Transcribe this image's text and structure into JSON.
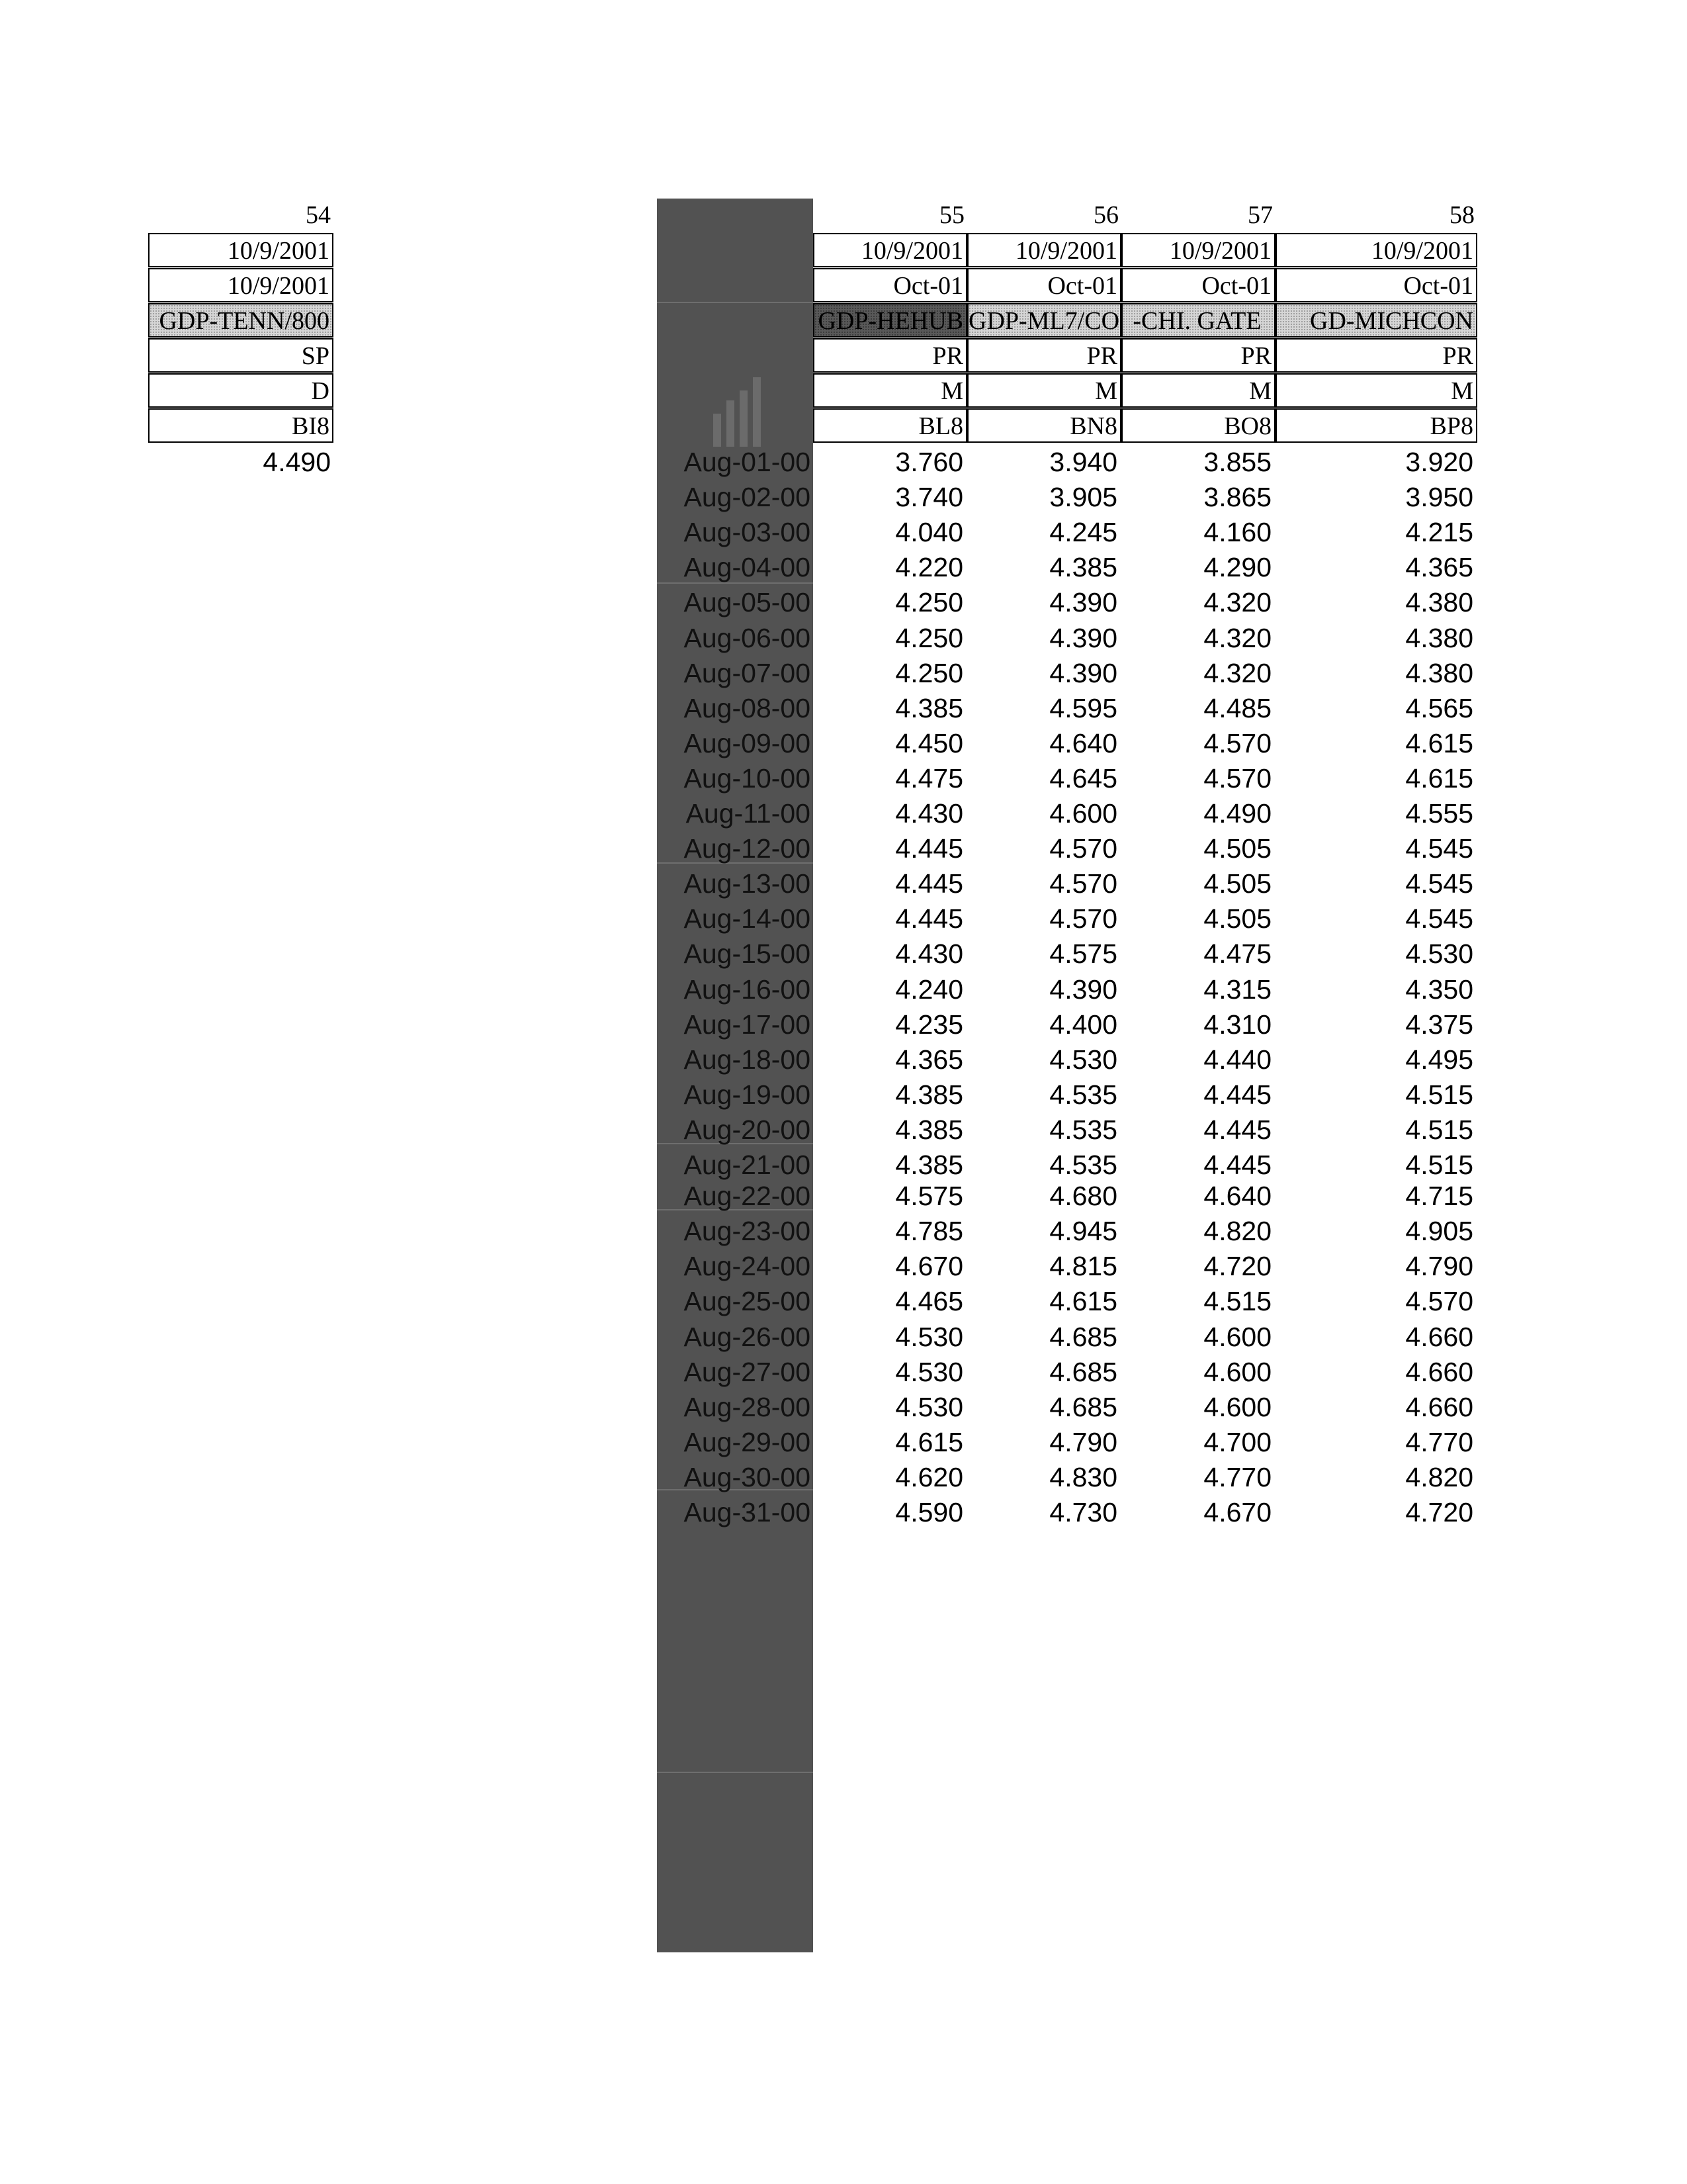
{
  "left_block": {
    "column_number": "54",
    "row_date1": "10/9/2001",
    "row_date2": "10/9/2001",
    "row_name": "GDP-TENN/800",
    "row_code1": "SP",
    "row_code2": "D",
    "row_cell": "BI8",
    "value": "4.490"
  },
  "columns": [
    {
      "number": "55",
      "date": "10/9/2001",
      "month": "Oct-01",
      "name": "GDP-HEHUB",
      "code1": "PR",
      "code2": "M",
      "cell": "BL8"
    },
    {
      "number": "56",
      "date": "10/9/2001",
      "month": "Oct-01",
      "name": "GDP-ML7/CO",
      "code1": "PR",
      "code2": "M",
      "cell": "BN8"
    },
    {
      "number": "57",
      "date": "10/9/2001",
      "month": "Oct-01",
      "name": "-CHI. GATE",
      "code1": "PR",
      "code2": "M",
      "cell": "BO8"
    },
    {
      "number": "58",
      "date": "10/9/2001",
      "month": "Oct-01",
      "name": "GD-MICHCON",
      "code1": "PR",
      "code2": "M",
      "cell": "BP8"
    }
  ],
  "rows": [
    {
      "date": "Aug-01-00",
      "values": [
        "3.760",
        "3.940",
        "3.855",
        "3.920"
      ]
    },
    {
      "date": "Aug-02-00",
      "values": [
        "3.740",
        "3.905",
        "3.865",
        "3.950"
      ]
    },
    {
      "date": "Aug-03-00",
      "values": [
        "4.040",
        "4.245",
        "4.160",
        "4.215"
      ]
    },
    {
      "date": "Aug-04-00",
      "values": [
        "4.220",
        "4.385",
        "4.290",
        "4.365"
      ]
    },
    {
      "date": "Aug-05-00",
      "values": [
        "4.250",
        "4.390",
        "4.320",
        "4.380"
      ]
    },
    {
      "date": "Aug-06-00",
      "values": [
        "4.250",
        "4.390",
        "4.320",
        "4.380"
      ]
    },
    {
      "date": "Aug-07-00",
      "values": [
        "4.250",
        "4.390",
        "4.320",
        "4.380"
      ]
    },
    {
      "date": "Aug-08-00",
      "values": [
        "4.385",
        "4.595",
        "4.485",
        "4.565"
      ]
    },
    {
      "date": "Aug-09-00",
      "values": [
        "4.450",
        "4.640",
        "4.570",
        "4.615"
      ]
    },
    {
      "date": "Aug-10-00",
      "values": [
        "4.475",
        "4.645",
        "4.570",
        "4.615"
      ]
    },
    {
      "date": "Aug-11-00",
      "values": [
        "4.430",
        "4.600",
        "4.490",
        "4.555"
      ]
    },
    {
      "date": "Aug-12-00",
      "values": [
        "4.445",
        "4.570",
        "4.505",
        "4.545"
      ]
    },
    {
      "date": "Aug-13-00",
      "values": [
        "4.445",
        "4.570",
        "4.505",
        "4.545"
      ]
    },
    {
      "date": "Aug-14-00",
      "values": [
        "4.445",
        "4.570",
        "4.505",
        "4.545"
      ]
    },
    {
      "date": "Aug-15-00",
      "values": [
        "4.430",
        "4.575",
        "4.475",
        "4.530"
      ]
    },
    {
      "date": "Aug-16-00",
      "values": [
        "4.240",
        "4.390",
        "4.315",
        "4.350"
      ]
    },
    {
      "date": "Aug-17-00",
      "values": [
        "4.235",
        "4.400",
        "4.310",
        "4.375"
      ]
    },
    {
      "date": "Aug-18-00",
      "values": [
        "4.365",
        "4.530",
        "4.440",
        "4.495"
      ]
    },
    {
      "date": "Aug-19-00",
      "values": [
        "4.385",
        "4.535",
        "4.445",
        "4.515"
      ]
    },
    {
      "date": "Aug-20-00",
      "values": [
        "4.385",
        "4.535",
        "4.445",
        "4.515"
      ]
    },
    {
      "date": "Aug-21-00",
      "values": [
        "4.385",
        "4.535",
        "4.445",
        "4.515"
      ]
    },
    {
      "date": "Aug-22-00",
      "values": [
        "4.575",
        "4.680",
        "4.640",
        "4.715"
      ]
    },
    {
      "date": "Aug-23-00",
      "values": [
        "4.785",
        "4.945",
        "4.820",
        "4.905"
      ]
    },
    {
      "date": "Aug-24-00",
      "values": [
        "4.670",
        "4.815",
        "4.720",
        "4.790"
      ]
    },
    {
      "date": "Aug-25-00",
      "values": [
        "4.465",
        "4.615",
        "4.515",
        "4.570"
      ]
    },
    {
      "date": "Aug-26-00",
      "values": [
        "4.530",
        "4.685",
        "4.600",
        "4.660"
      ]
    },
    {
      "date": "Aug-27-00",
      "values": [
        "4.530",
        "4.685",
        "4.600",
        "4.660"
      ]
    },
    {
      "date": "Aug-28-00",
      "values": [
        "4.530",
        "4.685",
        "4.600",
        "4.660"
      ]
    },
    {
      "date": "Aug-29-00",
      "values": [
        "4.615",
        "4.790",
        "4.700",
        "4.770"
      ]
    },
    {
      "date": "Aug-30-00",
      "values": [
        "4.620",
        "4.830",
        "4.770",
        "4.820"
      ]
    },
    {
      "date": "Aug-31-00",
      "values": [
        "4.590",
        "4.730",
        "4.670",
        "4.720"
      ]
    }
  ],
  "colors": {
    "dark_column": "#525252",
    "highlight_dark": "#595959",
    "highlight_light": "#d6d6d6"
  }
}
